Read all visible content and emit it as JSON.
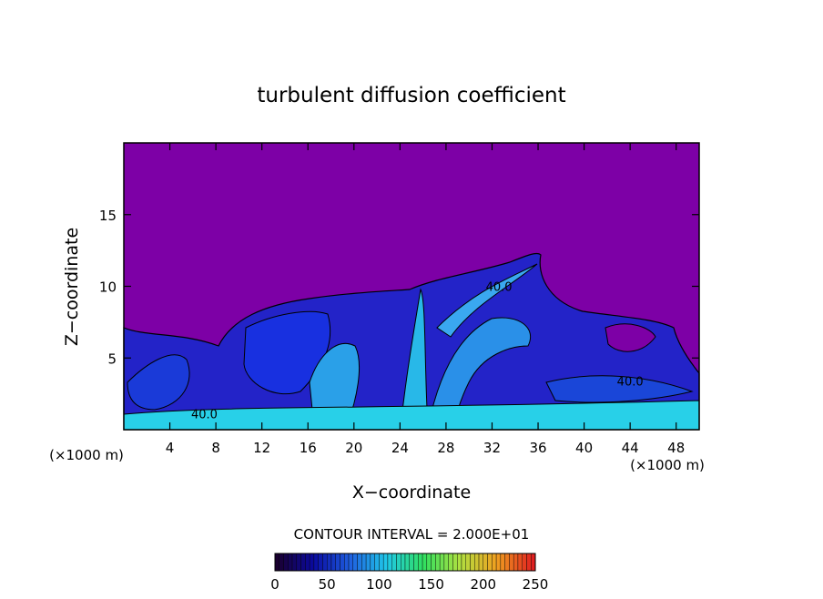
{
  "chart_data": {
    "type": "contour",
    "title": "turbulent diffusion coefficient",
    "xlabel": "X−coordinate",
    "ylabel": "Z−coordinate",
    "x_unit_labels": [
      "(×1000 m)",
      "(×1000 m)"
    ],
    "xlim": [
      0,
      50
    ],
    "ylim": [
      0,
      20
    ],
    "xticks": [
      4,
      8,
      12,
      16,
      20,
      24,
      28,
      32,
      36,
      40,
      44,
      48
    ],
    "yticks": [
      5,
      10,
      15
    ],
    "background_color": "#7d00a6",
    "contour_labels": [
      {
        "text": "40.0",
        "x": 32.6,
        "y": 10
      },
      {
        "text": "40.0",
        "x": 44,
        "y": 3.4
      },
      {
        "text": "40.0",
        "x": 7,
        "y": 1.1
      }
    ],
    "colorbar": {
      "title": "CONTOUR INTERVAL = 2.000E+01",
      "lim": [
        0,
        250
      ],
      "ticks": [
        0,
        50,
        100,
        150,
        200,
        250
      ],
      "colors": [
        "#1a0030",
        "#0a0aa0",
        "#1f5fe0",
        "#20c8e8",
        "#30e060",
        "#b0e040",
        "#f0a020",
        "#e02020"
      ]
    }
  }
}
